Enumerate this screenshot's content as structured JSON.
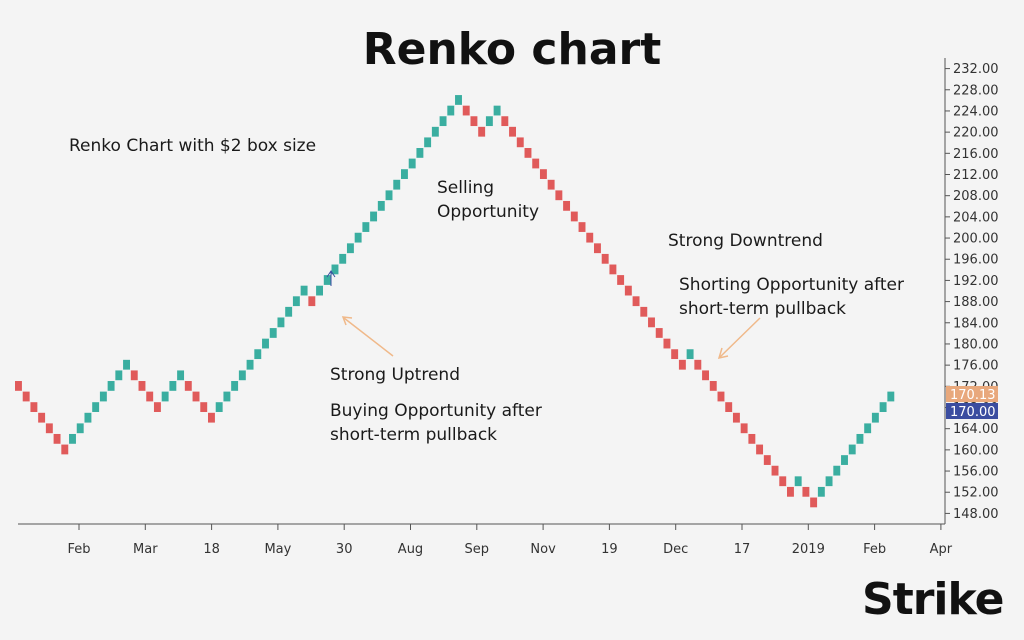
{
  "title": "Renko chart",
  "annotations": {
    "box_size": "Renko Chart with $2 box size",
    "selling": "Selling\nOpportunity",
    "downtrend": "Strong Downtrend",
    "shorting": "Shorting Opportunity after\nshort-term pullback",
    "uptrend": "Strong Uptrend",
    "buying": "Buying Opportunity after\nshort-term pullback"
  },
  "logo": "Strike",
  "colors": {
    "up": "#3aaea0",
    "down": "#e05a5a",
    "axis": "#555555",
    "price_tag": "#e8a87c",
    "current_tag": "#3b4da0",
    "arrow": "#f0b98a"
  },
  "price_tags": {
    "previous": "170.13",
    "current": "170.00"
  },
  "chart_data": {
    "type": "renko",
    "box_size": 2,
    "ylim": [
      146,
      234
    ],
    "y_ticks": [
      "148.00",
      "152.00",
      "156.00",
      "160.00",
      "164.00",
      "168.00",
      "172.00",
      "176.00",
      "180.00",
      "184.00",
      "188.00",
      "192.00",
      "196.00",
      "200.00",
      "204.00",
      "208.00",
      "212.00",
      "216.00",
      "220.00",
      "224.00",
      "228.00",
      "232.00"
    ],
    "x_ticks": [
      "Feb",
      "Mar",
      "18",
      "May",
      "30",
      "Aug",
      "Sep",
      "Nov",
      "19",
      "Dec",
      "17",
      "2019",
      "Feb",
      "Apr"
    ],
    "bricks": [
      [
        172,
        "down"
      ],
      [
        170,
        "down"
      ],
      [
        168,
        "down"
      ],
      [
        166,
        "down"
      ],
      [
        164,
        "down"
      ],
      [
        162,
        "down"
      ],
      [
        160,
        "down"
      ],
      [
        162,
        "up"
      ],
      [
        164,
        "up"
      ],
      [
        166,
        "up"
      ],
      [
        168,
        "up"
      ],
      [
        170,
        "up"
      ],
      [
        172,
        "up"
      ],
      [
        174,
        "up"
      ],
      [
        176,
        "up"
      ],
      [
        174,
        "down"
      ],
      [
        172,
        "down"
      ],
      [
        170,
        "down"
      ],
      [
        168,
        "down"
      ],
      [
        170,
        "up"
      ],
      [
        172,
        "up"
      ],
      [
        174,
        "up"
      ],
      [
        172,
        "down"
      ],
      [
        170,
        "down"
      ],
      [
        168,
        "down"
      ],
      [
        166,
        "down"
      ],
      [
        168,
        "up"
      ],
      [
        170,
        "up"
      ],
      [
        172,
        "up"
      ],
      [
        174,
        "up"
      ],
      [
        176,
        "up"
      ],
      [
        178,
        "up"
      ],
      [
        180,
        "up"
      ],
      [
        182,
        "up"
      ],
      [
        184,
        "up"
      ],
      [
        186,
        "up"
      ],
      [
        188,
        "up"
      ],
      [
        190,
        "up"
      ],
      [
        188,
        "down"
      ],
      [
        190,
        "up"
      ],
      [
        192,
        "up"
      ],
      [
        194,
        "up"
      ],
      [
        196,
        "up"
      ],
      [
        198,
        "up"
      ],
      [
        200,
        "up"
      ],
      [
        202,
        "up"
      ],
      [
        204,
        "up"
      ],
      [
        206,
        "up"
      ],
      [
        208,
        "up"
      ],
      [
        210,
        "up"
      ],
      [
        212,
        "up"
      ],
      [
        214,
        "up"
      ],
      [
        216,
        "up"
      ],
      [
        218,
        "up"
      ],
      [
        220,
        "up"
      ],
      [
        222,
        "up"
      ],
      [
        224,
        "up"
      ],
      [
        226,
        "up"
      ],
      [
        224,
        "down"
      ],
      [
        222,
        "down"
      ],
      [
        220,
        "down"
      ],
      [
        222,
        "up"
      ],
      [
        224,
        "up"
      ],
      [
        222,
        "down"
      ],
      [
        220,
        "down"
      ],
      [
        218,
        "down"
      ],
      [
        216,
        "down"
      ],
      [
        214,
        "down"
      ],
      [
        212,
        "down"
      ],
      [
        210,
        "down"
      ],
      [
        208,
        "down"
      ],
      [
        206,
        "down"
      ],
      [
        204,
        "down"
      ],
      [
        202,
        "down"
      ],
      [
        200,
        "down"
      ],
      [
        198,
        "down"
      ],
      [
        196,
        "down"
      ],
      [
        194,
        "down"
      ],
      [
        192,
        "down"
      ],
      [
        190,
        "down"
      ],
      [
        188,
        "down"
      ],
      [
        186,
        "down"
      ],
      [
        184,
        "down"
      ],
      [
        182,
        "down"
      ],
      [
        180,
        "down"
      ],
      [
        178,
        "down"
      ],
      [
        176,
        "down"
      ],
      [
        178,
        "up"
      ],
      [
        176,
        "down"
      ],
      [
        174,
        "down"
      ],
      [
        172,
        "down"
      ],
      [
        170,
        "down"
      ],
      [
        168,
        "down"
      ],
      [
        166,
        "down"
      ],
      [
        164,
        "down"
      ],
      [
        162,
        "down"
      ],
      [
        160,
        "down"
      ],
      [
        158,
        "down"
      ],
      [
        156,
        "down"
      ],
      [
        154,
        "down"
      ],
      [
        152,
        "down"
      ],
      [
        154,
        "up"
      ],
      [
        152,
        "down"
      ],
      [
        150,
        "down"
      ],
      [
        152,
        "up"
      ],
      [
        154,
        "up"
      ],
      [
        156,
        "up"
      ],
      [
        158,
        "up"
      ],
      [
        160,
        "up"
      ],
      [
        162,
        "up"
      ],
      [
        164,
        "up"
      ],
      [
        166,
        "up"
      ],
      [
        168,
        "up"
      ],
      [
        170,
        "up"
      ]
    ]
  }
}
